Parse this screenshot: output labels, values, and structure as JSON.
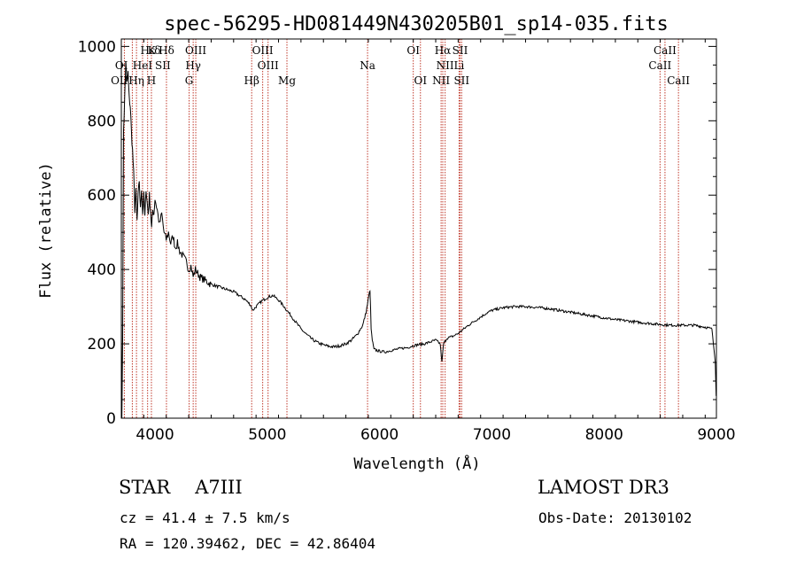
{
  "chart_data": {
    "type": "line",
    "title": "spec-56295-HD081449N430205B01_sp14-035.fits",
    "xlabel": "Wavelength (Å)",
    "ylabel": "Flux (relative)",
    "xlim": [
      3700,
      9000
    ],
    "ylim": [
      0,
      1020
    ],
    "x_ticks": [
      4000,
      5000,
      6000,
      7000,
      8000,
      9000
    ],
    "y_ticks": [
      0,
      200,
      400,
      600,
      800,
      1000
    ],
    "grid": false,
    "line_color": "#000000",
    "marker_color": "#c0392b",
    "spectrum": [
      [
        3700,
        320
      ],
      [
        3705,
        10
      ],
      [
        3712,
        200
      ],
      [
        3720,
        780
      ],
      [
        3730,
        860
      ],
      [
        3740,
        960
      ],
      [
        3750,
        900
      ],
      [
        3760,
        930
      ],
      [
        3770,
        860
      ],
      [
        3780,
        840
      ],
      [
        3790,
        770
      ],
      [
        3800,
        720
      ],
      [
        3810,
        660
      ],
      [
        3820,
        560
      ],
      [
        3830,
        610
      ],
      [
        3840,
        530
      ],
      [
        3850,
        600
      ],
      [
        3860,
        640
      ],
      [
        3870,
        560
      ],
      [
        3880,
        620
      ],
      [
        3890,
        550
      ],
      [
        3900,
        600
      ],
      [
        3910,
        540
      ],
      [
        3920,
        620
      ],
      [
        3930,
        580
      ],
      [
        3940,
        550
      ],
      [
        3950,
        600
      ],
      [
        3960,
        560
      ],
      [
        3970,
        510
      ],
      [
        3980,
        560
      ],
      [
        3990,
        550
      ],
      [
        4000,
        590
      ],
      [
        4020,
        560
      ],
      [
        4040,
        520
      ],
      [
        4060,
        550
      ],
      [
        4080,
        500
      ],
      [
        4100,
        480
      ],
      [
        4120,
        500
      ],
      [
        4140,
        470
      ],
      [
        4160,
        490
      ],
      [
        4180,
        460
      ],
      [
        4200,
        470
      ],
      [
        4220,
        450
      ],
      [
        4240,
        440
      ],
      [
        4260,
        430
      ],
      [
        4280,
        420
      ],
      [
        4300,
        400
      ],
      [
        4320,
        410
      ],
      [
        4340,
        380
      ],
      [
        4360,
        400
      ],
      [
        4380,
        390
      ],
      [
        4400,
        380
      ],
      [
        4450,
        370
      ],
      [
        4500,
        360
      ],
      [
        4550,
        355
      ],
      [
        4600,
        350
      ],
      [
        4650,
        345
      ],
      [
        4700,
        340
      ],
      [
        4750,
        330
      ],
      [
        4800,
        320
      ],
      [
        4850,
        305
      ],
      [
        4870,
        290
      ],
      [
        4900,
        300
      ],
      [
        4950,
        315
      ],
      [
        5000,
        325
      ],
      [
        5050,
        330
      ],
      [
        5100,
        318
      ],
      [
        5150,
        300
      ],
      [
        5200,
        280
      ],
      [
        5250,
        260
      ],
      [
        5300,
        240
      ],
      [
        5350,
        225
      ],
      [
        5400,
        212
      ],
      [
        5450,
        203
      ],
      [
        5500,
        197
      ],
      [
        5550,
        193
      ],
      [
        5600,
        192
      ],
      [
        5650,
        195
      ],
      [
        5700,
        200
      ],
      [
        5750,
        210
      ],
      [
        5800,
        225
      ],
      [
        5850,
        250
      ],
      [
        5880,
        285
      ],
      [
        5905,
        330
      ],
      [
        5915,
        345
      ],
      [
        5925,
        240
      ],
      [
        5935,
        210
      ],
      [
        5950,
        185
      ],
      [
        6000,
        180
      ],
      [
        6050,
        178
      ],
      [
        6100,
        182
      ],
      [
        6150,
        185
      ],
      [
        6200,
        188
      ],
      [
        6250,
        190
      ],
      [
        6300,
        195
      ],
      [
        6350,
        198
      ],
      [
        6400,
        200
      ],
      [
        6450,
        205
      ],
      [
        6500,
        210
      ],
      [
        6540,
        200
      ],
      [
        6555,
        150
      ],
      [
        6570,
        200
      ],
      [
        6600,
        215
      ],
      [
        6650,
        220
      ],
      [
        6700,
        228
      ],
      [
        6750,
        240
      ],
      [
        6800,
        252
      ],
      [
        6850,
        262
      ],
      [
        6900,
        272
      ],
      [
        6950,
        282
      ],
      [
        7000,
        290
      ],
      [
        7100,
        297
      ],
      [
        7200,
        300
      ],
      [
        7300,
        300
      ],
      [
        7400,
        298
      ],
      [
        7500,
        295
      ],
      [
        7600,
        290
      ],
      [
        7700,
        285
      ],
      [
        7800,
        280
      ],
      [
        7900,
        275
      ],
      [
        8000,
        270
      ],
      [
        8100,
        265
      ],
      [
        8200,
        262
      ],
      [
        8300,
        258
      ],
      [
        8400,
        255
      ],
      [
        8500,
        252
      ],
      [
        8600,
        250
      ],
      [
        8700,
        250
      ],
      [
        8800,
        250
      ],
      [
        8900,
        245
      ],
      [
        8960,
        240
      ],
      [
        8990,
        150
      ]
    ],
    "lines": [
      {
        "name": "Hε",
        "wl": 3970,
        "row": 0,
        "align": "right"
      },
      {
        "name": "δ",
        "wl": 3994,
        "row": 0,
        "align": "left"
      },
      {
        "name": "K",
        "wl": 3934,
        "row": 0,
        "align": "left"
      },
      {
        "name": "Hδ",
        "wl": 4102,
        "row": 0,
        "align": "center"
      },
      {
        "name": "OIII",
        "wl": 4363,
        "row": 0,
        "align": "center"
      },
      {
        "name": "OIII",
        "wl": 4959,
        "row": 0,
        "align": "center"
      },
      {
        "name": "OI",
        "wl": 6300,
        "row": 0,
        "align": "center"
      },
      {
        "name": "Hα",
        "wl": 6563,
        "row": 0,
        "align": "center"
      },
      {
        "name": "SII",
        "wl": 6717,
        "row": 0,
        "align": "center"
      },
      {
        "name": "CaII",
        "wl": 8542,
        "row": 0,
        "align": "center"
      },
      {
        "name": "OI",
        "wl": 3727,
        "row": 1,
        "align": "right"
      },
      {
        "name": "HeI",
        "wl": 3889,
        "row": 1,
        "align": "center"
      },
      {
        "name": "SII",
        "wl": 4070,
        "row": 1,
        "align": "center"
      },
      {
        "name": "Hγ",
        "wl": 4340,
        "row": 1,
        "align": "center"
      },
      {
        "name": "OIII",
        "wl": 5007,
        "row": 1,
        "align": "center"
      },
      {
        "name": "Na",
        "wl": 5893,
        "row": 1,
        "align": "center"
      },
      {
        "name": "NII",
        "wl": 6584,
        "row": 1,
        "align": "center"
      },
      {
        "name": "Li",
        "wl": 6708,
        "row": 1,
        "align": "center"
      },
      {
        "name": "CaII",
        "wl": 8498,
        "row": 1,
        "align": "center"
      },
      {
        "name": "OII",
        "wl": 3727,
        "row": 2,
        "align": "right"
      },
      {
        "name": "Hη",
        "wl": 3835,
        "row": 2,
        "align": "center"
      },
      {
        "name": "H",
        "wl": 3968,
        "row": 2,
        "align": "center"
      },
      {
        "name": "G",
        "wl": 4304,
        "row": 2,
        "align": "center"
      },
      {
        "name": "Hβ",
        "wl": 4861,
        "row": 2,
        "align": "center"
      },
      {
        "name": "Mg",
        "wl": 5175,
        "row": 2,
        "align": "center"
      },
      {
        "name": "OI",
        "wl": 6364,
        "row": 2,
        "align": "center"
      },
      {
        "name": "NII",
        "wl": 6548,
        "row": 2,
        "align": "center"
      },
      {
        "name": "SII",
        "wl": 6731,
        "row": 2,
        "align": "center"
      },
      {
        "name": "CaII",
        "wl": 8662,
        "row": 2,
        "align": "center"
      }
    ],
    "marker_wavelengths": [
      3727,
      3798,
      3835,
      3889,
      3934,
      3968,
      4102,
      4304,
      4340,
      4363,
      4861,
      4959,
      5007,
      5175,
      5893,
      6300,
      6364,
      6548,
      6563,
      6584,
      6708,
      6717,
      6731,
      8498,
      8542,
      8662
    ]
  },
  "info": {
    "object_class": "STAR",
    "spectral_type": "A7III",
    "survey": "LAMOST DR3",
    "cz": "cz = 41.4 ± 7.5 km/s",
    "obs_date": "Obs-Date: 20130102",
    "radec": "RA = 120.39462, DEC =  42.86404"
  }
}
